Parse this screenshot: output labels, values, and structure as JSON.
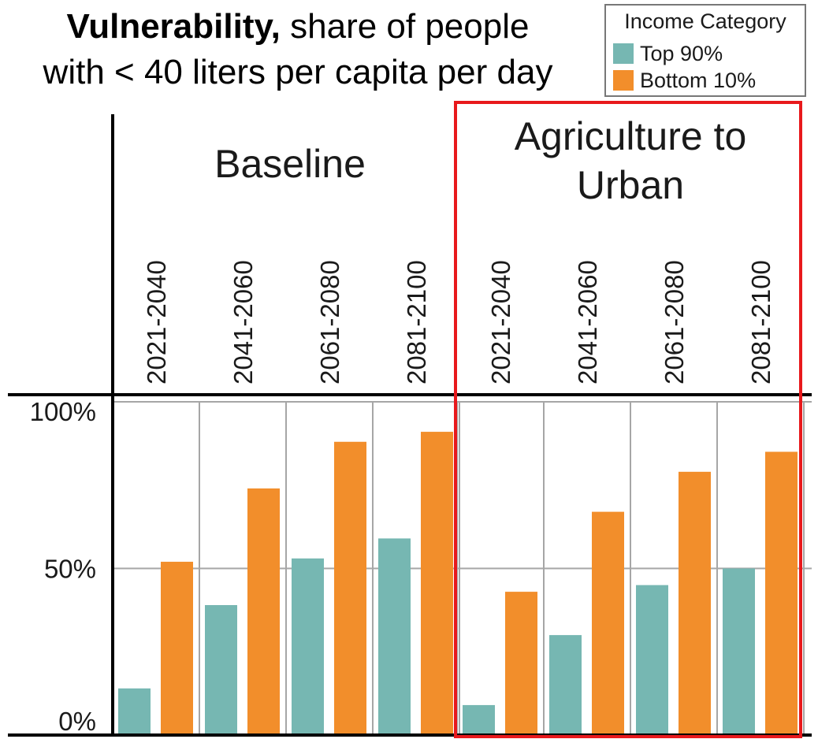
{
  "title": {
    "bold": "Vulnerability,",
    "rest": " share of people",
    "line2": "with < 40 liters per capita per day"
  },
  "legend": {
    "title": "Income Category",
    "items": [
      {
        "label": "Top 90%",
        "color": "#76b7b2"
      },
      {
        "label": "Bottom 10%",
        "color": "#f28e2b"
      }
    ]
  },
  "highlight_color": "#e8191c",
  "chart_data": {
    "type": "bar",
    "ylim": [
      0,
      100
    ],
    "yticks": [
      {
        "value": 0,
        "label": "0%"
      },
      {
        "value": 50,
        "label": "50%"
      },
      {
        "value": 100,
        "label": "100%"
      }
    ],
    "grid": true,
    "legend_position": "top-right",
    "panels": [
      {
        "title_lines": [
          "Baseline"
        ],
        "highlighted": false,
        "categories": [
          "2021-2040",
          "2041-2060",
          "2061-2080",
          "2081-2100"
        ],
        "series": [
          {
            "name": "Top 90%",
            "color": "#76b7b2",
            "values": [
              14,
              39,
              53,
              59
            ]
          },
          {
            "name": "Bottom 10%",
            "color": "#f28e2b",
            "values": [
              52,
              74,
              88,
              91
            ]
          }
        ]
      },
      {
        "title_lines": [
          "Agriculture to",
          "Urban"
        ],
        "highlighted": true,
        "categories": [
          "2021-2040",
          "2041-2060",
          "2061-2080",
          "2081-2100"
        ],
        "series": [
          {
            "name": "Top 90%",
            "color": "#76b7b2",
            "values": [
              9,
              30,
              45,
              50
            ]
          },
          {
            "name": "Bottom 10%",
            "color": "#f28e2b",
            "values": [
              43,
              67,
              79,
              85
            ]
          }
        ]
      }
    ]
  }
}
